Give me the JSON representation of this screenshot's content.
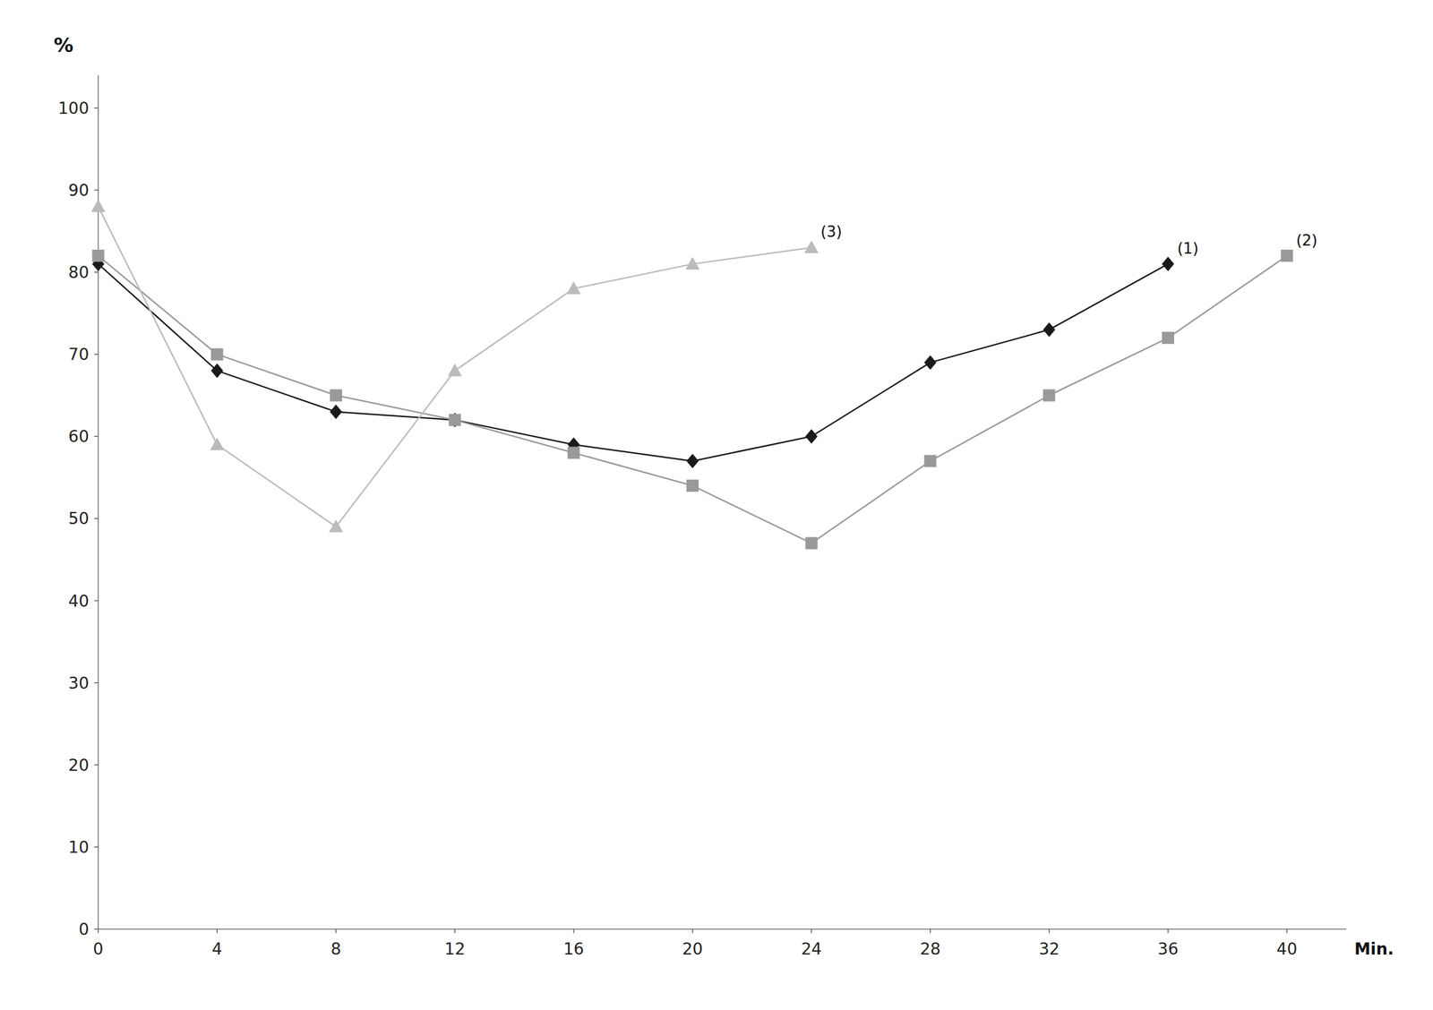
{
  "chart_data": {
    "type": "line",
    "ylabel": "%",
    "xlabel": "Min.",
    "xlim": [
      0,
      42
    ],
    "ylim": [
      0,
      104
    ],
    "xticks": [
      0,
      4,
      8,
      12,
      16,
      20,
      24,
      28,
      32,
      36,
      40
    ],
    "yticks": [
      0,
      10,
      20,
      30,
      40,
      50,
      60,
      70,
      80,
      90,
      100
    ],
    "grid": false,
    "series": [
      {
        "name": "(1)",
        "color": "#1a1a1a",
        "marker": "diamond",
        "x": [
          0,
          4,
          8,
          12,
          16,
          20,
          24,
          28,
          32,
          36
        ],
        "values": [
          81,
          68,
          63,
          62,
          59,
          57,
          60,
          69,
          73,
          81
        ]
      },
      {
        "name": "(2)",
        "color": "#999999",
        "marker": "square",
        "x": [
          0,
          4,
          8,
          12,
          16,
          20,
          24,
          28,
          32,
          36,
          40
        ],
        "values": [
          82,
          70,
          65,
          62,
          58,
          54,
          47,
          57,
          65,
          72,
          82
        ]
      },
      {
        "name": "(3)",
        "color": "#bbbbbb",
        "marker": "triangle",
        "x": [
          0,
          4,
          8,
          12,
          16,
          20,
          24
        ],
        "values": [
          88,
          59,
          49,
          68,
          78,
          81,
          83
        ]
      }
    ]
  }
}
